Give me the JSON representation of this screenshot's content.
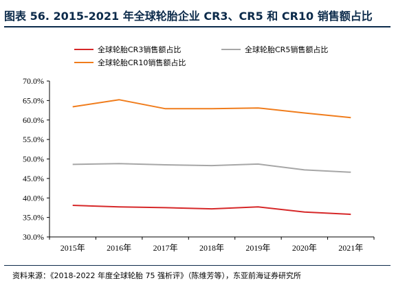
{
  "header": {
    "title": "图表 56. 2015-2021 年全球轮胎企业 CR3、CR5 和 CR10 销售额占比"
  },
  "footer": {
    "source": "资料来源：《2018-2022 年度全球轮胎 75 强析评》（陈维芳等），东亚前海证券研究所"
  },
  "colors": {
    "cr3": "#d62728",
    "cr5": "#a6a6a6",
    "cr10": "#f07c1b",
    "title": "#0b2a4a"
  },
  "chart_data": {
    "type": "line",
    "categories": [
      "2015年",
      "2016年",
      "2017年",
      "2018年",
      "2019年",
      "2020年",
      "2021年"
    ],
    "ylim": [
      30,
      70
    ],
    "yticks": [
      "30.0%",
      "35.0%",
      "40.0%",
      "45.0%",
      "50.0%",
      "55.0%",
      "60.0%",
      "65.0%",
      "70.0%"
    ],
    "grid": false,
    "legend_position": "top",
    "series": [
      {
        "name": "全球轮胎CR3销售额占比",
        "color": "#d62728",
        "values": [
          38.1,
          37.7,
          37.5,
          37.2,
          37.7,
          36.4,
          35.8
        ]
      },
      {
        "name": "全球轮胎CR5销售额占比",
        "color": "#a6a6a6",
        "values": [
          48.6,
          48.8,
          48.5,
          48.3,
          48.7,
          47.2,
          46.6
        ]
      },
      {
        "name": "全球轮胎CR10销售额占比",
        "color": "#f07c1b",
        "values": [
          63.4,
          65.2,
          62.9,
          62.9,
          63.1,
          61.8,
          60.6
        ]
      }
    ]
  }
}
